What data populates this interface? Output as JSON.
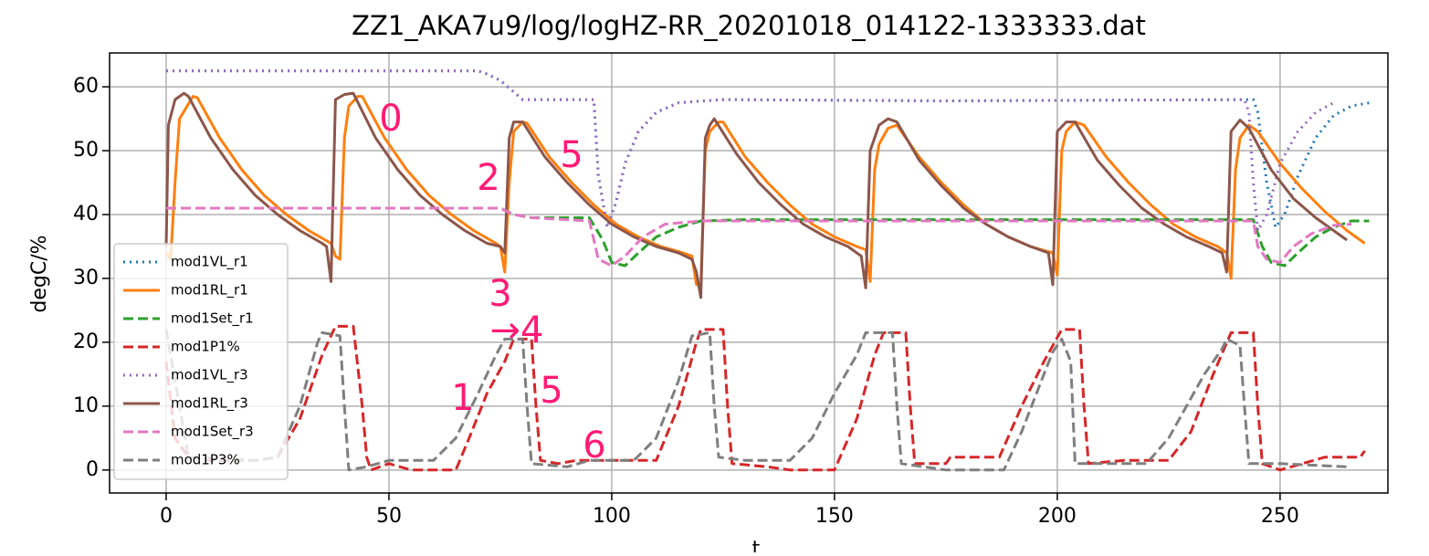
{
  "chart_data": {
    "type": "line",
    "title": "ZZ1_AKA7u9/log/logHZ-RR_20201018_014122-1333333.dat",
    "xlabel": "t",
    "ylabel": "degC/%",
    "xlim": [
      -12.7,
      274.2
    ],
    "ylim": [
      -3.6,
      65.3
    ],
    "xticks": [
      0,
      50,
      100,
      150,
      200,
      250
    ],
    "yticks": [
      0,
      10,
      20,
      30,
      40,
      50,
      60
    ],
    "grid": true,
    "legend": "lower left",
    "annotations": [
      "0",
      "2",
      "5",
      "3",
      "→4",
      "1",
      "5",
      "6"
    ],
    "annotation_color": "#ff1a75",
    "series": [
      {
        "name": "mod1VL_r1",
        "color": "#1f77b4",
        "style": "dotted",
        "x": [
          0,
          70,
          72,
          75,
          80,
          96,
          97,
          99,
          101,
          103,
          106,
          110,
          115,
          125,
          175,
          244,
          245,
          247,
          249,
          251,
          254,
          258,
          262,
          266,
          270
        ],
        "values": [
          62.5,
          62.5,
          62,
          61,
          58,
          58,
          46,
          38,
          42,
          48,
          53,
          56,
          57.5,
          58,
          57.8,
          58,
          56,
          45,
          38,
          40,
          46,
          52,
          55.5,
          57,
          57.5
        ]
      },
      {
        "name": "mod1RL_r1",
        "color": "#ff7f0e",
        "style": "solid",
        "x": [
          0,
          1,
          2,
          3,
          6,
          7,
          12,
          17,
          22,
          27,
          32,
          37,
          38,
          39,
          40,
          41,
          43,
          44,
          49,
          54,
          59,
          64,
          69,
          74,
          75,
          76,
          77,
          78,
          80,
          81,
          86,
          91,
          96,
          101,
          106,
          111,
          116,
          118,
          119,
          120,
          121,
          122,
          124,
          125,
          130,
          135,
          140,
          145,
          150,
          155,
          157,
          158,
          159,
          160,
          162,
          164,
          169,
          174,
          179,
          184,
          189,
          194,
          199,
          200,
          201,
          202,
          204,
          206,
          211,
          216,
          221,
          226,
          231,
          236,
          238,
          239,
          240,
          241,
          243,
          245,
          250,
          255,
          260,
          265,
          269
        ],
        "values": [
          34,
          33,
          45,
          55,
          58.5,
          58.3,
          52,
          47,
          43,
          40,
          37.5,
          35.5,
          33.5,
          33,
          52,
          57,
          58.5,
          58.5,
          52,
          47,
          43,
          40,
          37.5,
          35.5,
          35,
          31,
          45,
          53,
          54.5,
          54.3,
          49,
          45,
          41.5,
          38.5,
          36.5,
          35,
          34,
          33.5,
          29,
          29,
          50,
          53,
          54.5,
          54.5,
          49,
          45,
          41.5,
          38.5,
          36.5,
          35,
          34.5,
          29.5,
          47,
          51,
          53.5,
          54,
          49,
          45,
          41.5,
          38.5,
          36.5,
          35,
          34,
          30.5,
          50,
          53,
          54.5,
          54,
          49,
          45,
          41.5,
          38.5,
          36.5,
          35,
          34,
          30,
          47,
          52,
          54,
          53,
          48,
          44,
          40.5,
          37.5,
          35.5
        ]
      },
      {
        "name": "mod1Set_r1",
        "color": "#2ca02c",
        "style": "dashed",
        "x": [
          0,
          75,
          78,
          82,
          95,
          98,
          100,
          103,
          106,
          110,
          115,
          120,
          130,
          244,
          246,
          248,
          251,
          254,
          258,
          262,
          266,
          270
        ],
        "values": [
          41,
          41,
          40,
          39.5,
          39.5,
          36,
          32.5,
          32,
          34,
          36.5,
          38,
          39,
          39.2,
          39.2,
          35,
          32.5,
          32,
          34,
          36.5,
          38,
          39,
          39
        ]
      },
      {
        "name": "mod1P1%",
        "color": "#d62728",
        "style": "dashed",
        "x": [
          0,
          2,
          5,
          10,
          20,
          25,
          30,
          35,
          38,
          42,
          44,
          45,
          46,
          50,
          55,
          65,
          68,
          72,
          76,
          78,
          82,
          83,
          84,
          88,
          92,
          96,
          100,
          110,
          115,
          119,
          120,
          125,
          126,
          127,
          135,
          140,
          150,
          155,
          159,
          161,
          166,
          167,
          168,
          175,
          176,
          187,
          192,
          197,
          201,
          205,
          206,
          207,
          215,
          225,
          230,
          235,
          239,
          244,
          245,
          246,
          250,
          260,
          268,
          269
        ],
        "values": [
          17,
          5,
          2,
          1.5,
          1.5,
          2,
          8,
          18,
          22.5,
          22.5,
          10,
          2,
          0,
          1,
          0,
          0,
          5,
          12,
          17,
          20.5,
          20.5,
          10,
          1.5,
          1,
          1.5,
          1.5,
          1.5,
          1.5,
          10,
          20,
          22,
          22,
          10,
          1,
          0.5,
          0,
          0,
          8,
          18,
          21.5,
          21.5,
          10,
          1,
          1,
          2,
          2,
          10,
          17,
          22,
          22,
          10,
          1,
          1.5,
          1.5,
          6,
          15,
          21.5,
          21.5,
          10,
          1,
          0,
          2,
          2,
          3
        ]
      },
      {
        "name": "mod1VL_r3",
        "color": "#9467bd",
        "style": "dotted",
        "x": [
          0,
          70,
          72,
          75,
          80,
          96,
          97,
          99,
          101,
          103,
          106,
          110,
          115,
          125,
          175,
          242,
          243,
          244,
          245,
          247,
          250,
          254,
          258,
          262
        ],
        "values": [
          62.5,
          62.5,
          62,
          61,
          58,
          58,
          46,
          38,
          42,
          48,
          53,
          56,
          57.5,
          58,
          57.8,
          58,
          56,
          45,
          37.5,
          40,
          48,
          53,
          56,
          57.5
        ]
      },
      {
        "name": "mod1RL_r3",
        "color": "#8c564b",
        "style": "solid",
        "x": [
          0,
          0.5,
          2,
          4,
          5,
          10,
          15,
          20,
          25,
          30,
          35,
          36,
          37,
          38,
          40,
          42,
          47,
          52,
          57,
          62,
          67,
          72,
          75,
          76,
          77,
          78,
          80,
          85,
          90,
          95,
          100,
          105,
          110,
          115,
          118,
          119,
          120,
          121,
          122,
          123,
          128,
          133,
          138,
          143,
          148,
          153,
          156,
          157,
          158,
          160,
          162,
          164,
          169,
          174,
          179,
          184,
          189,
          194,
          198,
          199,
          200,
          202,
          204,
          209,
          214,
          219,
          224,
          229,
          234,
          237,
          238,
          239,
          241,
          243,
          248,
          253,
          258,
          265
        ],
        "values": [
          35,
          54,
          58,
          59,
          58.5,
          52,
          47,
          43,
          40,
          37.5,
          35.5,
          35,
          29.5,
          58,
          58.8,
          59,
          52,
          47,
          43,
          40,
          37.5,
          35.5,
          35,
          34,
          52,
          54.5,
          54.5,
          49,
          45,
          41.5,
          38.5,
          36.5,
          35,
          34,
          33,
          31,
          27,
          52,
          54,
          55,
          49.5,
          45,
          41.5,
          38.5,
          36.5,
          35,
          33.5,
          28.5,
          50,
          54,
          55,
          54.5,
          48.5,
          44.5,
          41,
          38.5,
          36.5,
          35,
          34,
          29,
          53,
          54.5,
          54.5,
          48.5,
          44.5,
          41,
          38.5,
          36.5,
          35,
          34,
          31,
          53,
          54.8,
          53.5,
          47,
          42.5,
          39.5,
          36
        ]
      },
      {
        "name": "mod1Set_r3",
        "color": "#e377c2",
        "style": "dashed",
        "x": [
          0,
          75,
          78,
          82,
          95,
          97,
          100,
          103,
          107,
          112,
          120,
          244,
          245,
          247,
          250,
          253,
          257,
          262,
          266
        ],
        "values": [
          41,
          41,
          40,
          39.5,
          39,
          33,
          32,
          33.5,
          36.5,
          38.5,
          39,
          39,
          35,
          33,
          32.5,
          35,
          37,
          38.3,
          38.5
        ]
      },
      {
        "name": "mod1P3%",
        "color": "#7f7f7f",
        "style": "dashed",
        "x": [
          0,
          3,
          5,
          20,
          25,
          30,
          34,
          35,
          39,
          40,
          41,
          45,
          50,
          60,
          65,
          70,
          74,
          76,
          80,
          81,
          82,
          90,
          95,
          105,
          110,
          115,
          118,
          122,
          123,
          124,
          130,
          140,
          145,
          150,
          155,
          157,
          163,
          164,
          165,
          175,
          188,
          192,
          197,
          199,
          201,
          203,
          204,
          210,
          220,
          225,
          233,
          237,
          238,
          241,
          242,
          243,
          250,
          265
        ],
        "values": [
          22,
          10,
          2,
          1.5,
          2,
          10,
          20,
          21.5,
          21,
          10,
          0,
          0.5,
          1.5,
          1.5,
          5,
          12,
          18,
          20.5,
          20.5,
          10,
          1,
          0.5,
          1.5,
          1.5,
          5,
          14,
          21,
          21.5,
          10,
          2,
          1.5,
          1.5,
          5,
          12,
          18,
          21.5,
          21.5,
          10,
          1,
          0,
          0,
          6,
          15,
          18.5,
          20.5,
          17,
          1,
          1,
          1,
          5,
          15,
          19,
          20.5,
          19.5,
          10,
          1,
          1,
          0.5
        ]
      }
    ]
  }
}
